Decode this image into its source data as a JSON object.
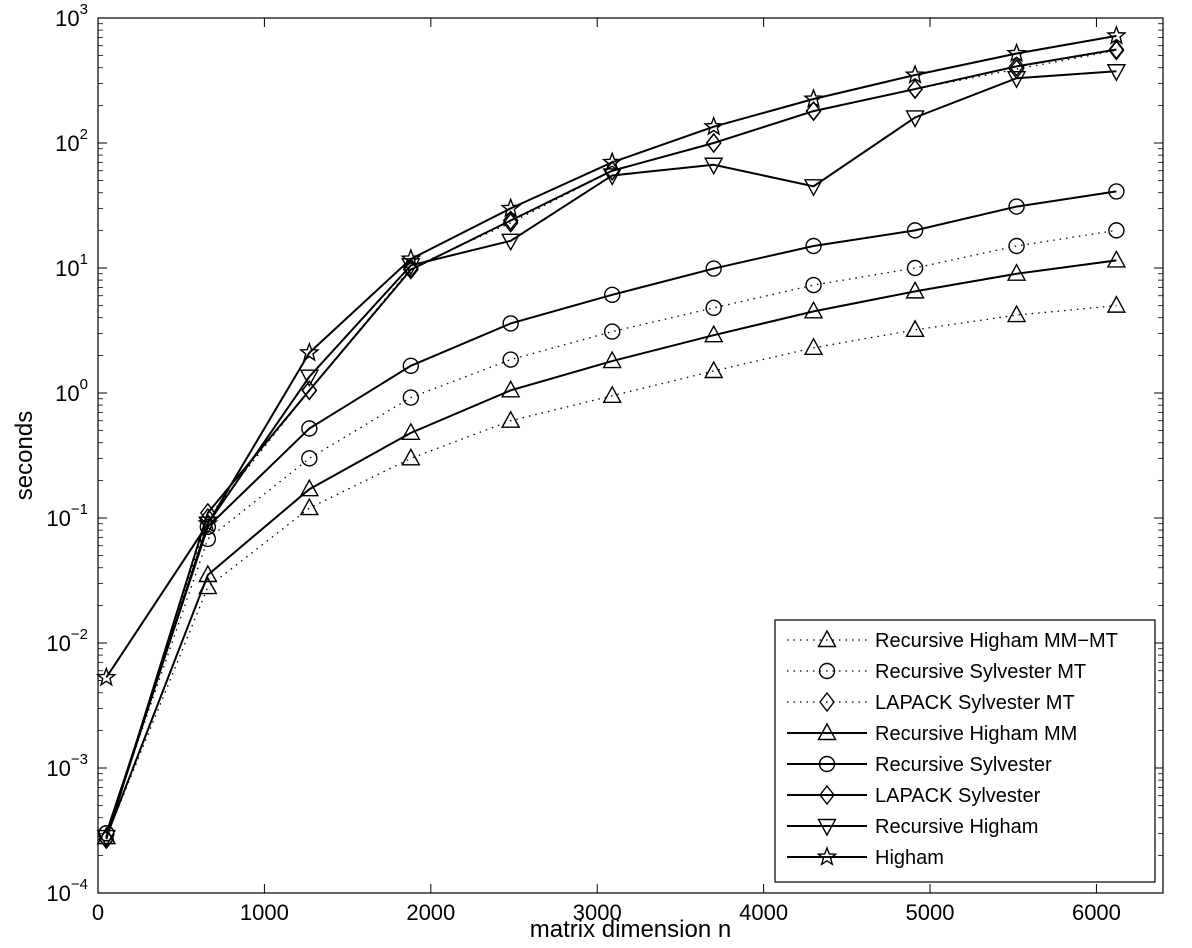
{
  "chart_data": {
    "type": "line",
    "title": "",
    "xlabel": "matrix dimension n",
    "ylabel": "seconds",
    "xlim": [
      0,
      6400
    ],
    "ylim": [
      0.0001,
      1000
    ],
    "yscale": "log",
    "grid": false,
    "legend_position": "bottom-right",
    "x_ticks": [
      0,
      1000,
      2000,
      3000,
      4000,
      5000,
      6000
    ],
    "x_tick_labels": [
      "0",
      "1000",
      "2000",
      "3000",
      "4000",
      "5000",
      "6000"
    ],
    "y_ticks": [
      0.0001,
      0.001,
      0.01,
      0.1,
      1,
      10,
      100,
      1000
    ],
    "y_tick_labels": [
      {
        "base": "10",
        "exp": "−4"
      },
      {
        "base": "10",
        "exp": "−3"
      },
      {
        "base": "10",
        "exp": "−2"
      },
      {
        "base": "10",
        "exp": "−1"
      },
      {
        "base": "10",
        "exp": "0"
      },
      {
        "base": "10",
        "exp": "1"
      },
      {
        "base": "10",
        "exp": "2"
      },
      {
        "base": "10",
        "exp": "3"
      }
    ],
    "x": [
      50,
      660,
      1270,
      1880,
      2480,
      3090,
      3700,
      4300,
      4910,
      5520,
      6120
    ],
    "series": [
      {
        "name": "Recursive Higham MM−MT",
        "line": "dotted",
        "marker": "triangle-up",
        "values": [
          0.00028,
          0.028,
          0.12,
          0.3,
          0.6,
          0.95,
          1.5,
          2.3,
          3.2,
          4.2,
          5.0
        ]
      },
      {
        "name": "Recursive Sylvester MT",
        "line": "dotted",
        "marker": "circle",
        "values": [
          0.0003,
          0.068,
          0.3,
          0.92,
          1.85,
          3.1,
          4.8,
          7.3,
          10,
          15,
          20
        ]
      },
      {
        "name": "LAPACK Sylvester MT",
        "line": "dotted",
        "marker": "diamond",
        "values": [
          0.00027,
          0.1,
          1.05,
          10,
          23,
          60,
          100,
          180,
          270,
          390,
          550
        ]
      },
      {
        "name": "Recursive Higham MM",
        "line": "solid",
        "marker": "triangle-up",
        "values": [
          0.00028,
          0.035,
          0.17,
          0.48,
          1.05,
          1.8,
          2.9,
          4.5,
          6.5,
          9.0,
          11.5
        ]
      },
      {
        "name": "Recursive Sylvester",
        "line": "solid",
        "marker": "circle",
        "values": [
          0.0003,
          0.085,
          0.52,
          1.65,
          3.6,
          6.1,
          9.9,
          15,
          20,
          31,
          41
        ]
      },
      {
        "name": "LAPACK Sylvester",
        "line": "solid",
        "marker": "diamond",
        "values": [
          0.00027,
          0.11,
          1.05,
          9.7,
          24,
          60,
          100,
          180,
          270,
          410,
          560
        ]
      },
      {
        "name": "Recursive Higham",
        "line": "solid",
        "marker": "triangle-down",
        "values": [
          0.00028,
          0.09,
          1.35,
          10.5,
          16.5,
          55,
          67,
          45,
          160,
          330,
          375
        ]
      },
      {
        "name": "Higham",
        "line": "solid",
        "marker": "star",
        "values": [
          0.0053,
          0.09,
          2.1,
          11.8,
          30,
          70,
          135,
          225,
          350,
          520,
          720
        ]
      }
    ]
  }
}
